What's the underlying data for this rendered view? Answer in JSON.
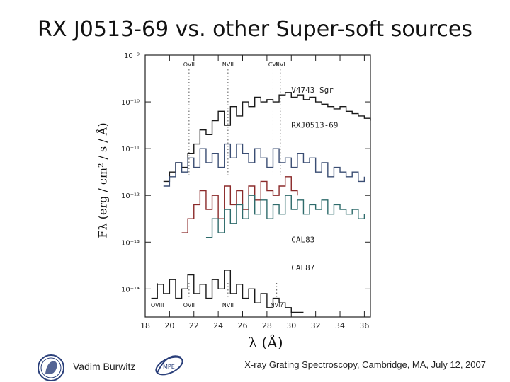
{
  "slide": {
    "title": "RX J0513-69 vs. other Super-soft sources",
    "footer_author": "Vadim Burwitz",
    "footer_event": "X-ray Grating Spectroscopy, Cambridge, MA, July 12, 2007",
    "logo_left": "max-planck-minerva-logo",
    "logo_right": "mpe-logo"
  },
  "chart_data": {
    "type": "line",
    "title": "",
    "xlabel": "λ (Å)",
    "ylabel": "Fλ (erg / cm² / s / Å)",
    "xlim": [
      18,
      36.5
    ],
    "ylim_log10": [
      -14.6,
      -9
    ],
    "y_scale": "log",
    "x_ticks": [
      18,
      20,
      22,
      24,
      26,
      28,
      30,
      32,
      34,
      36
    ],
    "x_tick_labels": [
      "18",
      "20",
      "22",
      "24",
      "26",
      "28",
      "30",
      "32",
      "34",
      "36"
    ],
    "y_ticks_log10": [
      -9,
      -10,
      -11,
      -12,
      -13,
      -14
    ],
    "y_tick_labels": [
      "10⁻⁹",
      "10⁻¹⁰",
      "10⁻¹¹",
      "10⁻¹²",
      "10⁻¹³",
      "10⁻¹⁴"
    ],
    "line_ids_top": [
      {
        "label": "OVII",
        "x": 21.6
      },
      {
        "label": "NVII",
        "x": 24.8
      },
      {
        "label": "CVI",
        "x": 28.5
      },
      {
        "label": "NVI",
        "x": 29.1
      }
    ],
    "line_ids_bottom": [
      {
        "label": "OVIII",
        "x": 19.0
      },
      {
        "label": "OVII",
        "x": 21.6
      },
      {
        "label": "NVII",
        "x": 24.8
      },
      {
        "label": "NVI?",
        "x": 28.8
      }
    ],
    "series": [
      {
        "name": "V4743 Sgr",
        "color": "#1a1a1a",
        "x": [
          19.5,
          20.0,
          20.5,
          21.0,
          21.5,
          22.0,
          22.5,
          23.0,
          23.5,
          24.0,
          24.5,
          25.0,
          25.5,
          26.0,
          26.5,
          27.0,
          27.5,
          28.0,
          28.5,
          29.0,
          29.5,
          30.0,
          30.5,
          31.0,
          31.5,
          32.0,
          32.5,
          33.0,
          33.5,
          34.0,
          34.5,
          35.0,
          35.5,
          36.0,
          36.5
        ],
        "y_log10": [
          -11.7,
          -11.5,
          -11.3,
          -11.4,
          -11.1,
          -10.9,
          -10.6,
          -10.7,
          -10.4,
          -10.2,
          -10.5,
          -10.1,
          -10.3,
          -10.0,
          -10.1,
          -9.9,
          -10.0,
          -9.95,
          -10.0,
          -9.85,
          -9.8,
          -9.9,
          -9.85,
          -9.95,
          -9.9,
          -10.0,
          -10.05,
          -10.1,
          -10.15,
          -10.1,
          -10.2,
          -10.25,
          -10.3,
          -10.35,
          -10.4
        ]
      },
      {
        "name": "RXJ0513-69",
        "color": "#3a4d73",
        "x": [
          19.5,
          20.0,
          20.5,
          21.0,
          21.5,
          22.0,
          22.5,
          23.0,
          23.5,
          24.0,
          24.5,
          25.0,
          25.5,
          26.0,
          26.5,
          27.0,
          27.5,
          28.0,
          28.5,
          29.0,
          29.5,
          30.0,
          30.5,
          31.0,
          31.5,
          32.0,
          32.5,
          33.0,
          33.5,
          34.0,
          34.5,
          35.0,
          35.5,
          36.0
        ],
        "y_log10": [
          -11.8,
          -11.6,
          -11.3,
          -11.5,
          -11.2,
          -11.4,
          -11.0,
          -11.3,
          -11.1,
          -11.4,
          -10.9,
          -11.2,
          -10.9,
          -11.1,
          -11.3,
          -11.0,
          -11.2,
          -11.4,
          -11.0,
          -11.3,
          -11.2,
          -11.4,
          -11.1,
          -11.3,
          -11.2,
          -11.5,
          -11.3,
          -11.6,
          -11.4,
          -11.5,
          -11.6,
          -11.5,
          -11.7,
          -11.6
        ]
      },
      {
        "name": "red spectrum",
        "color": "#8b2a2a",
        "x": [
          21.0,
          21.5,
          22.0,
          22.5,
          23.0,
          23.5,
          24.0,
          24.5,
          25.0,
          25.5,
          26.0,
          26.5,
          27.0,
          27.5,
          28.0,
          28.5,
          29.0,
          29.5,
          30.0,
          30.5
        ],
        "y_log10": [
          -12.8,
          -12.5,
          -12.2,
          -11.9,
          -12.3,
          -12.0,
          -12.5,
          -11.8,
          -12.2,
          -11.9,
          -12.3,
          -11.8,
          -12.1,
          -11.7,
          -11.9,
          -12.0,
          -11.8,
          -11.6,
          -11.9,
          -12.0
        ]
      },
      {
        "name": "CAL83",
        "color": "#2e6b6b",
        "x": [
          23.0,
          23.5,
          24.0,
          24.5,
          25.0,
          25.5,
          26.0,
          26.5,
          27.0,
          27.5,
          28.0,
          28.5,
          29.0,
          29.5,
          30.0,
          30.5,
          31.0,
          31.5,
          32.0,
          32.5,
          33.0,
          33.5,
          34.0,
          34.5,
          35.0,
          35.5,
          36.0
        ],
        "y_log10": [
          -12.9,
          -12.5,
          -12.8,
          -12.3,
          -12.6,
          -12.2,
          -12.5,
          -12.0,
          -12.4,
          -12.1,
          -12.5,
          -12.2,
          -12.4,
          -12.0,
          -12.3,
          -12.1,
          -12.4,
          -12.2,
          -12.3,
          -12.1,
          -12.4,
          -12.2,
          -12.3,
          -12.4,
          -12.3,
          -12.5,
          -12.4
        ]
      },
      {
        "name": "CAL87",
        "color": "#1a1a1a",
        "x": [
          18.5,
          19.0,
          19.5,
          20.0,
          20.5,
          21.0,
          21.5,
          22.0,
          22.5,
          23.0,
          23.5,
          24.0,
          24.5,
          25.0,
          25.5,
          26.0,
          26.5,
          27.0,
          27.5,
          28.0,
          28.5,
          29.0,
          29.5,
          30.0,
          30.5,
          31.0
        ],
        "y_log10": [
          -14.2,
          -13.9,
          -14.1,
          -13.8,
          -14.2,
          -14.0,
          -13.7,
          -14.1,
          -13.9,
          -14.2,
          -13.8,
          -14.0,
          -13.6,
          -14.1,
          -13.9,
          -14.2,
          -14.0,
          -14.3,
          -14.1,
          -14.4,
          -14.2,
          -14.3,
          -14.4,
          -14.5,
          -14.5,
          -14.5
        ]
      }
    ],
    "series_labels": [
      {
        "text": "V4743 Sgr",
        "x": 30.0,
        "y_log10": -9.8
      },
      {
        "text": "RXJ0513-69",
        "x": 30.0,
        "y_log10": -10.55
      },
      {
        "text": "CAL83",
        "x": 30.0,
        "y_log10": -13.0
      },
      {
        "text": "CAL87",
        "x": 30.0,
        "y_log10": -13.6
      }
    ]
  }
}
